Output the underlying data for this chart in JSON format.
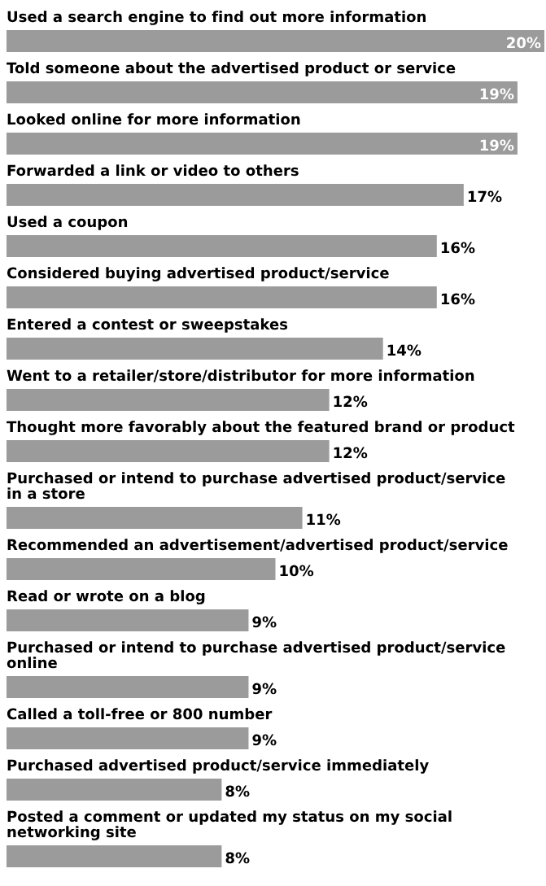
{
  "chart_data": {
    "type": "bar",
    "orientation": "horizontal",
    "color": "#9b9b9b",
    "categories": [
      "Used a search engine to find out more information",
      "Told someone about the advertised product or service",
      "Looked online for more information",
      "Forwarded a link or video to others",
      "Used a coupon",
      "Considered buying advertised product/service",
      "Entered a contest or sweepstakes",
      "Went to a retailer/store/distributor for more information",
      "Thought more favorably about the featured brand or product",
      "Purchased or intend to purchase advertised product/service in a store",
      "Recommended an advertisement/advertised product/service",
      "Read or wrote on a blog",
      "Purchased or intend to purchase advertised product/service online",
      "Called a toll-free or 800 number",
      "Purchased advertised product/service immediately",
      "Posted a comment or updated my status on my social networking site"
    ],
    "values": [
      20,
      19,
      19,
      17,
      16,
      16,
      14,
      12,
      12,
      11,
      10,
      9,
      9,
      9,
      8,
      8
    ],
    "value_labels": [
      "20%",
      "19%",
      "19%",
      "17%",
      "16%",
      "16%",
      "14%",
      "12%",
      "12%",
      "11%",
      "10%",
      "9%",
      "9%",
      "9%",
      "8%",
      "8%"
    ]
  }
}
